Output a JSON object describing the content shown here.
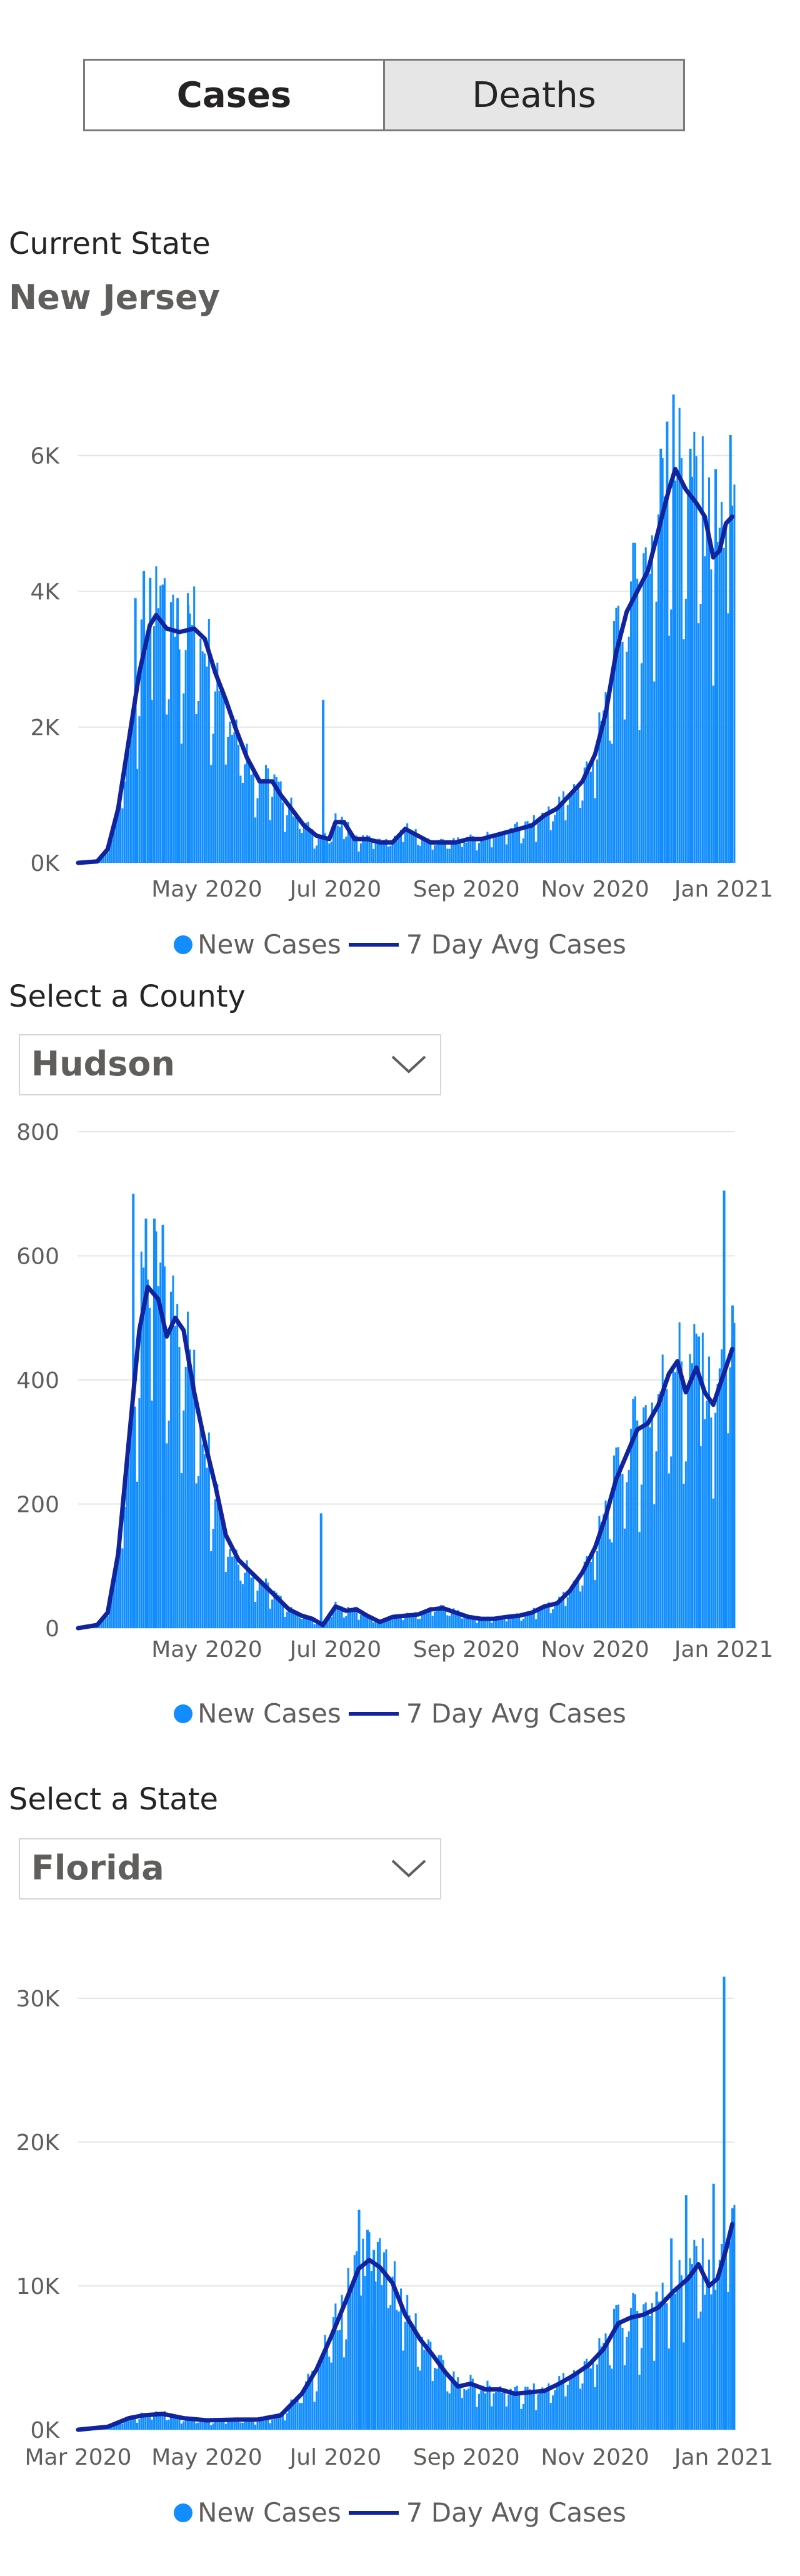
{
  "tabs": {
    "cases_label": "Cases",
    "deaths_label": "Deaths"
  },
  "state": {
    "label": "Current State",
    "value": "New Jersey"
  },
  "county": {
    "label": "Select a County",
    "value": "Hudson"
  },
  "select_state": {
    "label": "Select a State",
    "value": "Florida"
  },
  "legend": {
    "bars": "New Cases",
    "line": "7 Day Avg Cases"
  },
  "colors": {
    "bars": "#118dff",
    "line": "#12239e",
    "grid": "#e6e6e6"
  },
  "chart_data": [
    {
      "type": "bar",
      "name": "new-jersey-cases",
      "x_range": [
        "2020-03-01",
        "2021-01-06"
      ],
      "x_ticks": [
        {
          "label": "May 2020",
          "date": "2020-05-01"
        },
        {
          "label": "Jul 2020",
          "date": "2020-07-01"
        },
        {
          "label": "Sep 2020",
          "date": "2020-09-01"
        },
        {
          "label": "Nov 2020",
          "date": "2020-11-01"
        },
        {
          "label": "Jan 2021",
          "date": "2021-01-01"
        }
      ],
      "y_ticks": [
        {
          "label": "0K",
          "value": 0
        },
        {
          "label": "2K",
          "value": 2000
        },
        {
          "label": "4K",
          "value": 4000
        },
        {
          "label": "6K",
          "value": 6000
        }
      ],
      "ylim": [
        0,
        7000
      ],
      "series": [
        {
          "name": "7 Day Avg Cases",
          "type": "line",
          "points": [
            [
              "2020-03-01",
              0
            ],
            [
              "2020-03-10",
              20
            ],
            [
              "2020-03-15",
              200
            ],
            [
              "2020-03-20",
              800
            ],
            [
              "2020-03-25",
              1800
            ],
            [
              "2020-03-30",
              2800
            ],
            [
              "2020-04-04",
              3500
            ],
            [
              "2020-04-07",
              3650
            ],
            [
              "2020-04-12",
              3450
            ],
            [
              "2020-04-18",
              3400
            ],
            [
              "2020-04-25",
              3450
            ],
            [
              "2020-04-30",
              3300
            ],
            [
              "2020-05-05",
              2800
            ],
            [
              "2020-05-10",
              2400
            ],
            [
              "2020-05-15",
              1950
            ],
            [
              "2020-05-20",
              1550
            ],
            [
              "2020-05-26",
              1200
            ],
            [
              "2020-06-01",
              1200
            ],
            [
              "2020-06-05",
              1000
            ],
            [
              "2020-06-10",
              800
            ],
            [
              "2020-06-16",
              550
            ],
            [
              "2020-06-22",
              400
            ],
            [
              "2020-06-28",
              350
            ],
            [
              "2020-07-01",
              600
            ],
            [
              "2020-07-05",
              600
            ],
            [
              "2020-07-10",
              350
            ],
            [
              "2020-07-16",
              350
            ],
            [
              "2020-07-22",
              300
            ],
            [
              "2020-07-28",
              300
            ],
            [
              "2020-08-03",
              500
            ],
            [
              "2020-08-09",
              400
            ],
            [
              "2020-08-15",
              300
            ],
            [
              "2020-08-21",
              300
            ],
            [
              "2020-08-27",
              300
            ],
            [
              "2020-09-02",
              350
            ],
            [
              "2020-09-08",
              350
            ],
            [
              "2020-09-14",
              400
            ],
            [
              "2020-09-20",
              450
            ],
            [
              "2020-09-26",
              500
            ],
            [
              "2020-10-02",
              550
            ],
            [
              "2020-10-08",
              700
            ],
            [
              "2020-10-14",
              800
            ],
            [
              "2020-10-20",
              1000
            ],
            [
              "2020-10-26",
              1200
            ],
            [
              "2020-11-01",
              1600
            ],
            [
              "2020-11-06",
              2200
            ],
            [
              "2020-11-11",
              3100
            ],
            [
              "2020-11-16",
              3700
            ],
            [
              "2020-11-21",
              4000
            ],
            [
              "2020-11-26",
              4300
            ],
            [
              "2020-12-01",
              4900
            ],
            [
              "2020-12-06",
              5500
            ],
            [
              "2020-12-09",
              5800
            ],
            [
              "2020-12-14",
              5500
            ],
            [
              "2020-12-19",
              5300
            ],
            [
              "2020-12-23",
              5100
            ],
            [
              "2020-12-27",
              4500
            ],
            [
              "2020-12-30",
              4600
            ],
            [
              "2021-01-02",
              5000
            ],
            [
              "2021-01-05",
              5100
            ]
          ]
        },
        {
          "name": "New Cases",
          "type": "bar",
          "spikes": [
            [
              "2020-03-28",
              3900
            ],
            [
              "2020-04-01",
              4300
            ],
            [
              "2020-04-04",
              4200
            ],
            [
              "2020-04-10",
              4100
            ],
            [
              "2020-04-17",
              3900
            ],
            [
              "2020-04-22",
              3800
            ],
            [
              "2020-06-25",
              2400
            ],
            [
              "2020-12-02",
              6100
            ],
            [
              "2020-12-05",
              6500
            ],
            [
              "2020-12-08",
              6900
            ],
            [
              "2020-12-16",
              6100
            ],
            [
              "2020-12-28",
              5800
            ],
            [
              "2021-01-04",
              6300
            ]
          ]
        }
      ]
    },
    {
      "type": "bar",
      "name": "hudson-cases",
      "x_range": [
        "2020-03-01",
        "2021-01-06"
      ],
      "x_ticks": [
        {
          "label": "May 2020",
          "date": "2020-05-01"
        },
        {
          "label": "Jul 2020",
          "date": "2020-07-01"
        },
        {
          "label": "Sep 2020",
          "date": "2020-09-01"
        },
        {
          "label": "Nov 2020",
          "date": "2020-11-01"
        },
        {
          "label": "Jan 2021",
          "date": "2021-01-01"
        }
      ],
      "y_ticks": [
        {
          "label": "0",
          "value": 0
        },
        {
          "label": "200",
          "value": 200
        },
        {
          "label": "400",
          "value": 400
        },
        {
          "label": "600",
          "value": 600
        },
        {
          "label": "800",
          "value": 800
        }
      ],
      "ylim": [
        0,
        800
      ],
      "series": [
        {
          "name": "7 Day Avg Cases",
          "type": "line",
          "points": [
            [
              "2020-03-01",
              0
            ],
            [
              "2020-03-10",
              5
            ],
            [
              "2020-03-15",
              25
            ],
            [
              "2020-03-20",
              120
            ],
            [
              "2020-03-25",
              300
            ],
            [
              "2020-03-30",
              480
            ],
            [
              "2020-04-03",
              550
            ],
            [
              "2020-04-08",
              530
            ],
            [
              "2020-04-12",
              470
            ],
            [
              "2020-04-16",
              500
            ],
            [
              "2020-04-20",
              480
            ],
            [
              "2020-04-25",
              380
            ],
            [
              "2020-04-30",
              300
            ],
            [
              "2020-05-05",
              230
            ],
            [
              "2020-05-10",
              150
            ],
            [
              "2020-05-16",
              110
            ],
            [
              "2020-05-22",
              90
            ],
            [
              "2020-05-28",
              70
            ],
            [
              "2020-06-03",
              50
            ],
            [
              "2020-06-09",
              30
            ],
            [
              "2020-06-15",
              20
            ],
            [
              "2020-06-20",
              15
            ],
            [
              "2020-06-25",
              5
            ],
            [
              "2020-06-28",
              20
            ],
            [
              "2020-07-01",
              35
            ],
            [
              "2020-07-06",
              28
            ],
            [
              "2020-07-11",
              30
            ],
            [
              "2020-07-16",
              20
            ],
            [
              "2020-07-22",
              10
            ],
            [
              "2020-07-28",
              18
            ],
            [
              "2020-08-03",
              20
            ],
            [
              "2020-08-09",
              22
            ],
            [
              "2020-08-15",
              30
            ],
            [
              "2020-08-21",
              32
            ],
            [
              "2020-08-27",
              25
            ],
            [
              "2020-09-02",
              18
            ],
            [
              "2020-09-08",
              15
            ],
            [
              "2020-09-14",
              15
            ],
            [
              "2020-09-20",
              18
            ],
            [
              "2020-09-26",
              20
            ],
            [
              "2020-10-02",
              25
            ],
            [
              "2020-10-08",
              35
            ],
            [
              "2020-10-14",
              40
            ],
            [
              "2020-10-20",
              60
            ],
            [
              "2020-10-26",
              90
            ],
            [
              "2020-11-01",
              130
            ],
            [
              "2020-11-06",
              180
            ],
            [
              "2020-11-11",
              240
            ],
            [
              "2020-11-16",
              280
            ],
            [
              "2020-11-21",
              320
            ],
            [
              "2020-11-26",
              330
            ],
            [
              "2020-12-01",
              360
            ],
            [
              "2020-12-06",
              410
            ],
            [
              "2020-12-10",
              430
            ],
            [
              "2020-12-14",
              380
            ],
            [
              "2020-12-19",
              420
            ],
            [
              "2020-12-23",
              380
            ],
            [
              "2020-12-27",
              360
            ],
            [
              "2020-12-31",
              400
            ],
            [
              "2021-01-03",
              430
            ],
            [
              "2021-01-05",
              450
            ]
          ]
        },
        {
          "name": "New Cases",
          "type": "bar",
          "spikes": [
            [
              "2020-03-27",
              700
            ],
            [
              "2020-04-02",
              660
            ],
            [
              "2020-04-06",
              660
            ],
            [
              "2020-04-10",
              650
            ],
            [
              "2020-06-24",
              185
            ],
            [
              "2020-12-20",
              470
            ],
            [
              "2021-01-01",
              705
            ],
            [
              "2021-01-05",
              520
            ]
          ]
        }
      ]
    },
    {
      "type": "bar",
      "name": "florida-cases",
      "x_range": [
        "2020-03-01",
        "2021-01-06"
      ],
      "x_ticks": [
        {
          "label": "Mar 2020",
          "date": "2020-03-01"
        },
        {
          "label": "May 2020",
          "date": "2020-05-01"
        },
        {
          "label": "Jul 2020",
          "date": "2020-07-01"
        },
        {
          "label": "Sep 2020",
          "date": "2020-09-01"
        },
        {
          "label": "Nov 2020",
          "date": "2020-11-01"
        },
        {
          "label": "Jan 2021",
          "date": "2021-01-01"
        }
      ],
      "y_ticks": [
        {
          "label": "0K",
          "value": 0
        },
        {
          "label": "10K",
          "value": 10000
        },
        {
          "label": "20K",
          "value": 20000
        },
        {
          "label": "30K",
          "value": 30000
        }
      ],
      "ylim": [
        0,
        32000
      ],
      "series": [
        {
          "name": "7 Day Avg Cases",
          "type": "line",
          "points": [
            [
              "2020-03-01",
              0
            ],
            [
              "2020-03-15",
              200
            ],
            [
              "2020-03-25",
              800
            ],
            [
              "2020-04-01",
              1000
            ],
            [
              "2020-04-10",
              1100
            ],
            [
              "2020-04-20",
              800
            ],
            [
              "2020-05-01",
              650
            ],
            [
              "2020-05-15",
              700
            ],
            [
              "2020-05-25",
              700
            ],
            [
              "2020-06-05",
              1000
            ],
            [
              "2020-06-15",
              2500
            ],
            [
              "2020-06-22",
              4200
            ],
            [
              "2020-06-29",
              6500
            ],
            [
              "2020-07-06",
              9000
            ],
            [
              "2020-07-12",
              11200
            ],
            [
              "2020-07-17",
              11800
            ],
            [
              "2020-07-22",
              11300
            ],
            [
              "2020-07-28",
              10200
            ],
            [
              "2020-08-03",
              8000
            ],
            [
              "2020-08-10",
              6300
            ],
            [
              "2020-08-16",
              5200
            ],
            [
              "2020-08-22",
              4000
            ],
            [
              "2020-08-28",
              3000
            ],
            [
              "2020-09-03",
              3200
            ],
            [
              "2020-09-10",
              2800
            ],
            [
              "2020-09-17",
              2800
            ],
            [
              "2020-09-24",
              2500
            ],
            [
              "2020-10-01",
              2600
            ],
            [
              "2020-10-08",
              2700
            ],
            [
              "2020-10-15",
              3200
            ],
            [
              "2020-10-22",
              3800
            ],
            [
              "2020-10-29",
              4500
            ],
            [
              "2020-11-05",
              5600
            ],
            [
              "2020-11-12",
              7400
            ],
            [
              "2020-11-18",
              7800
            ],
            [
              "2020-11-24",
              8000
            ],
            [
              "2020-12-01",
              8500
            ],
            [
              "2020-12-08",
              9600
            ],
            [
              "2020-12-15",
              10500
            ],
            [
              "2020-12-20",
              11500
            ],
            [
              "2020-12-25",
              10000
            ],
            [
              "2020-12-29",
              10500
            ],
            [
              "2021-01-02",
              12500
            ],
            [
              "2021-01-05",
              14300
            ]
          ]
        },
        {
          "name": "New Cases",
          "type": "bar",
          "spikes": [
            [
              "2020-07-12",
              15300
            ],
            [
              "2020-07-16",
              13900
            ],
            [
              "2020-07-19",
              12500
            ],
            [
              "2020-11-30",
              9600
            ],
            [
              "2020-12-07",
              13300
            ],
            [
              "2020-12-14",
              16300
            ],
            [
              "2020-12-27",
              17100
            ],
            [
              "2021-01-01",
              31500
            ],
            [
              "2021-01-05",
              15400
            ]
          ]
        }
      ]
    }
  ]
}
